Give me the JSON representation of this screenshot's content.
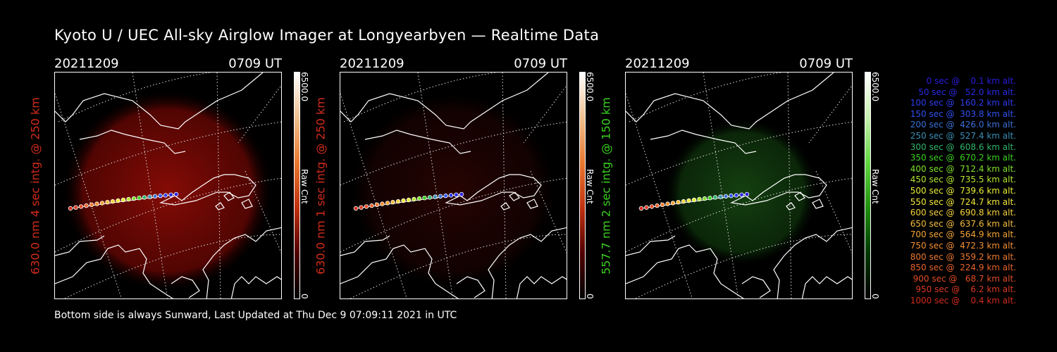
{
  "title": "Kyoto U / UEC All-sky Airglow Imager at Longyearbyen — Realtime Data",
  "footer": "Bottom side is always Sunward, Last Updated at Thu Dec  9 07:09:11 2021 in UTC",
  "colors": {
    "red": "#d22b1c",
    "green": "#3ad21f",
    "bg": "#000000"
  },
  "panels": [
    {
      "date": "20211209",
      "time": "0709 UT",
      "label": "630.0 nm 4 sec intg. @ 250 km",
      "label_color": "#d22b1c",
      "cbar_max": "6500.0",
      "cbar_unit": "Raw Cnt",
      "cbar_min": "0"
    },
    {
      "date": "20211209",
      "time": "0709 UT",
      "label": "630.0 nm 1 sec intg. @ 250 km",
      "label_color": "#d22b1c",
      "cbar_max": "6500.0",
      "cbar_unit": "Raw Cnt",
      "cbar_min": "0"
    },
    {
      "date": "20211209",
      "time": "0709 UT",
      "label": "557.7 nm 2 sec intg. @ 150 km",
      "label_color": "#3ad21f",
      "cbar_max": "6500.0",
      "cbar_unit": "Raw Cnt",
      "cbar_min": "0"
    }
  ],
  "legend": [
    {
      "text": "   0 sec @    0.1 km alt.",
      "color": "#2a1ee0"
    },
    {
      "text": "  50 sec @   52.0 km alt.",
      "color": "#2a2ae8"
    },
    {
      "text": " 100 sec @  160.2 km alt.",
      "color": "#2e3cef"
    },
    {
      "text": " 150 sec @  303.8 km alt.",
      "color": "#2f52f2"
    },
    {
      "text": " 200 sec @  426.0 km alt.",
      "color": "#3a70d8"
    },
    {
      "text": " 250 sec @  527.4 km alt.",
      "color": "#3a8fb5"
    },
    {
      "text": " 300 sec @  608.6 km alt.",
      "color": "#2fb56a"
    },
    {
      "text": " 350 sec @  670.2 km alt.",
      "color": "#3ad21f"
    },
    {
      "text": " 400 sec @  712.4 km alt.",
      "color": "#7fe02a"
    },
    {
      "text": " 450 sec @  735.5 km alt.",
      "color": "#b5e82f"
    },
    {
      "text": " 500 sec @  739.6 km alt.",
      "color": "#e6ee34"
    },
    {
      "text": " 550 sec @  724.7 km alt.",
      "color": "#f2e83a"
    },
    {
      "text": " 600 sec @  690.8 km alt.",
      "color": "#f5d23c"
    },
    {
      "text": " 650 sec @  637.6 km alt.",
      "color": "#f5bd3a"
    },
    {
      "text": " 700 sec @  564.9 km alt.",
      "color": "#f5a537"
    },
    {
      "text": " 750 sec @  472.3 km alt.",
      "color": "#f28f33"
    },
    {
      "text": " 800 sec @  359.2 km alt.",
      "color": "#ee792f"
    },
    {
      "text": " 850 sec @  224.9 km alt.",
      "color": "#e8632b"
    },
    {
      "text": " 900 sec @   68.7 km alt.",
      "color": "#e24d27"
    },
    {
      "text": " 950 sec @    6.2 km alt.",
      "color": "#db3a22"
    },
    {
      "text": "1000 sec @    0.4 km alt.",
      "color": "#d22b1c"
    }
  ]
}
